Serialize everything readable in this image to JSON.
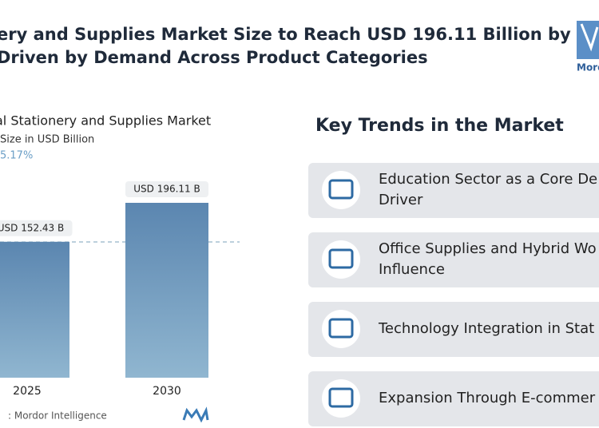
{
  "header": {
    "title_lines": [
      "ery and Supplies Market Size to Reach USD 196.11 Billion by",
      "Driven by Demand Across Product Categories"
    ],
    "logo_text": "Mord"
  },
  "chart_data": {
    "type": "bar",
    "title": "al Stationery and Supplies Market",
    "subtitle": "Size in USD Billion",
    "cagr": "5.17%",
    "categories": [
      "2025",
      "2030"
    ],
    "values": [
      152.43,
      196.11
    ],
    "value_labels": [
      "USD 152.43 B",
      "USD 196.11 B"
    ],
    "color_top": "#5b86b0",
    "color_bottom": "#90b6d0",
    "source": ":  Mordor Intelligence"
  },
  "trends": {
    "title": "Key Trends in the Market",
    "items": [
      {
        "lines": [
          "Education Sector as a Core De",
          "Driver"
        ]
      },
      {
        "lines": [
          "Office Supplies and Hybrid Wo",
          "Influence"
        ]
      },
      {
        "lines": [
          "Technology Integration in Stat"
        ]
      },
      {
        "lines": [
          "Expansion Through E-commer"
        ]
      }
    ]
  }
}
